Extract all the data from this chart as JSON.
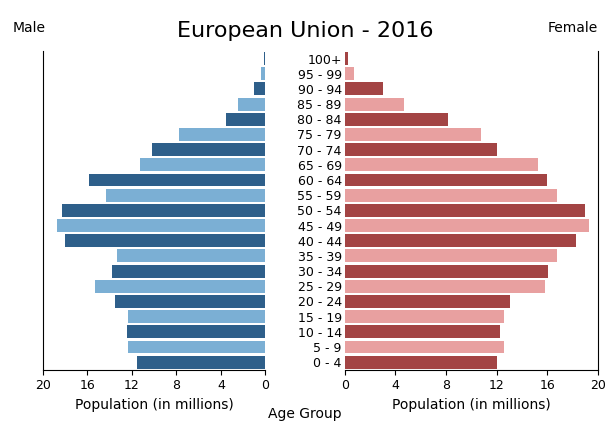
{
  "title": "European Union - 2016",
  "male_label": "Male",
  "female_label": "Female",
  "xlabel_left": "Population (in millions)",
  "xlabel_center": "Age Group",
  "xlabel_right": "Population (in millions)",
  "age_groups": [
    "0 - 4",
    "5 - 9",
    "10 - 14",
    "15 - 19",
    "20 - 24",
    "25 - 29",
    "30 - 34",
    "35 - 39",
    "40 - 44",
    "45 - 49",
    "50 - 54",
    "55 - 59",
    "60 - 64",
    "65 - 69",
    "70 - 74",
    "75 - 79",
    "80 - 84",
    "85 - 89",
    "90 - 94",
    "95 - 99",
    "100+"
  ],
  "male_values": [
    11.5,
    12.3,
    12.4,
    12.3,
    13.5,
    15.3,
    13.8,
    13.3,
    18.0,
    18.7,
    18.3,
    14.3,
    15.8,
    11.3,
    10.2,
    7.8,
    3.5,
    2.5,
    1.0,
    0.35,
    0.08
  ],
  "female_values": [
    12.0,
    12.6,
    12.3,
    12.6,
    13.1,
    15.8,
    16.1,
    16.8,
    18.3,
    19.3,
    19.0,
    16.8,
    16.0,
    15.3,
    12.0,
    10.8,
    8.2,
    4.7,
    3.0,
    0.75,
    0.25
  ],
  "male_dark_color": "#2E5F8A",
  "male_light_color": "#7BAFD4",
  "female_dark_color": "#A34444",
  "female_light_color": "#E8A0A0",
  "background_color": "#FFFFFF",
  "xlim": 20,
  "title_fontsize": 16,
  "axis_label_fontsize": 10,
  "tick_fontsize": 9,
  "bar_height": 0.85
}
